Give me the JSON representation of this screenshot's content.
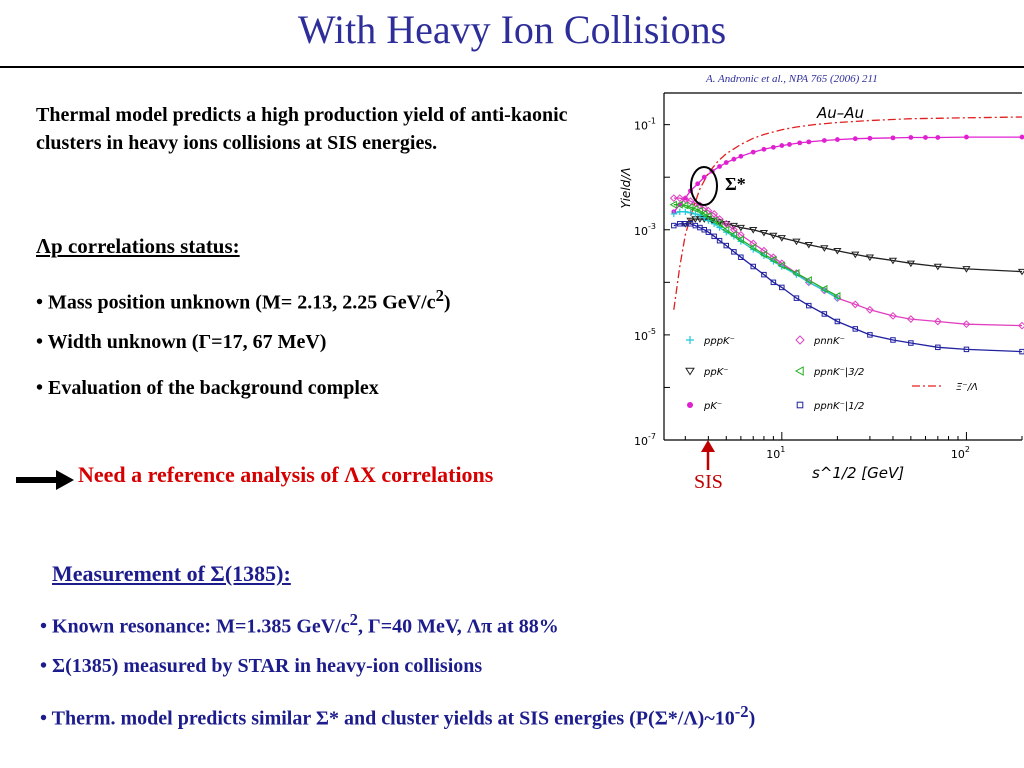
{
  "title": "With Heavy Ion Collisions",
  "citation": "A. Andronic et al., NPA 765 (2006) 211",
  "intro": "Thermal model predicts a high production yield of anti-kaonic clusters in heavy ions collisions at SIS energies.",
  "lp_heading": "Λp correlations status:",
  "lp_bullets": [
    {
      "a": "• Mass position unknown (M= 2.13, 2.25 GeV/c",
      "sup": "2",
      "b": ")"
    },
    {
      "a": "• Width unknown (Γ=17, 67 MeV)",
      "sup": "",
      "b": ""
    },
    {
      "a": "• Evaluation of the background complex",
      "sup": "",
      "b": ""
    }
  ],
  "need_text": "Need a reference analysis of ΛX correlations",
  "sis_label": "SIS",
  "sigma_star_label": "Σ*",
  "measurement_heading": "Measurement of Σ(1385):",
  "measurement_bullets": [
    {
      "a": "• Known resonance: M=1.385 GeV/c",
      "sup": "2",
      "b": ", Γ=40 MeV,  Λπ at 88%"
    },
    {
      "a": "• Σ(1385) measured by STAR in heavy-ion collisions",
      "sup": "",
      "b": ""
    },
    {
      "a": "• Therm. model predicts similar Σ* and cluster yields at SIS energies (P(Σ*/Λ)~10",
      "sup": "-2",
      "b": ")"
    }
  ],
  "chart_data": {
    "type": "line",
    "title": "Au–Au",
    "xlabel": "s^1/2 [GeV]",
    "ylabel": "Yield/Λ",
    "xscale": "log",
    "yscale": "log",
    "xlim": [
      2.3,
      200
    ],
    "ylim": [
      1e-07,
      0.4
    ],
    "xticks": [
      {
        "value": 10,
        "base": "10",
        "exp": "1"
      },
      {
        "value": 100,
        "base": "10",
        "exp": "2"
      }
    ],
    "yticks": [
      {
        "value": 0.1,
        "base": "10",
        "exp": "-1"
      },
      {
        "value": 0.001,
        "base": "10",
        "exp": "-3"
      },
      {
        "value": 1e-05,
        "base": "10",
        "exp": "-5"
      },
      {
        "value": 1e-07,
        "base": "10",
        "exp": "-7"
      }
    ],
    "legend": [
      {
        "marker": "plus",
        "color": "#20c8d8",
        "label": "pppK⁻"
      },
      {
        "marker": "diamond",
        "color": "#e040c0",
        "label": "pnnK⁻"
      },
      {
        "marker": "tri-down",
        "color": "#222222",
        "label": "ppK⁻"
      },
      {
        "marker": "tri-left",
        "color": "#20b020",
        "label": "ppnK⁻|3/2"
      },
      {
        "marker": "dashdot",
        "color": "#e02020",
        "label": "Ξ⁻/Λ"
      },
      {
        "marker": "dot",
        "color": "#e020d0",
        "label": "pK⁻"
      },
      {
        "marker": "square",
        "color": "#2020a0",
        "label": "ppnK⁻|1/2"
      }
    ],
    "series": [
      {
        "name": "pK⁻",
        "color": "#e020d0",
        "marker": "dot",
        "x": [
          2.6,
          2.8,
          3.0,
          3.2,
          3.5,
          3.8,
          4.2,
          4.6,
          5,
          5.5,
          6,
          7,
          8,
          9,
          10,
          11,
          12.5,
          14,
          17,
          20,
          25,
          30,
          40,
          50,
          60,
          70,
          100,
          200
        ],
        "y": [
          0.0022,
          0.003,
          0.004,
          0.0055,
          0.0075,
          0.01,
          0.013,
          0.016,
          0.019,
          0.022,
          0.025,
          0.03,
          0.034,
          0.037,
          0.04,
          0.042,
          0.045,
          0.047,
          0.05,
          0.052,
          0.054,
          0.055,
          0.056,
          0.057,
          0.057,
          0.057,
          0.058,
          0.058
        ]
      },
      {
        "name": "ppK⁻",
        "color": "#222222",
        "marker": "tri-down",
        "x": [
          3.0,
          3.2,
          3.4,
          3.6,
          3.8,
          4.0,
          4.2,
          4.6,
          5,
          5.5,
          6,
          7,
          8,
          9,
          10,
          12,
          14,
          17,
          20,
          25,
          30,
          40,
          50,
          70,
          100,
          200
        ],
        "y": [
          0.0013,
          0.0015,
          0.0016,
          0.0016,
          0.0016,
          0.0016,
          0.0015,
          0.0014,
          0.0013,
          0.0012,
          0.0011,
          0.001,
          0.00088,
          0.00078,
          0.0007,
          0.0006,
          0.00052,
          0.00045,
          0.0004,
          0.00034,
          0.0003,
          0.00026,
          0.00023,
          0.0002,
          0.00018,
          0.00016
        ]
      },
      {
        "name": "pnnK⁻",
        "color": "#e040c0",
        "marker": "diamond",
        "x": [
          2.6,
          2.8,
          3.0,
          3.2,
          3.4,
          3.6,
          3.8,
          4.0,
          4.3,
          4.6,
          5,
          5.5,
          6,
          7,
          8,
          9,
          10,
          12,
          14,
          17,
          20,
          25,
          30,
          40,
          50,
          70,
          100,
          200
        ],
        "y": [
          0.004,
          0.004,
          0.0038,
          0.0035,
          0.0032,
          0.0029,
          0.0026,
          0.0023,
          0.002,
          0.0016,
          0.0013,
          0.001,
          0.0008,
          0.00055,
          0.0004,
          0.0003,
          0.00023,
          0.00015,
          0.0001,
          7e-05,
          5e-05,
          3.8e-05,
          3e-05,
          2.3e-05,
          2e-05,
          1.8e-05,
          1.6e-05,
          1.5e-05
        ]
      },
      {
        "name": "pppK⁻",
        "color": "#20c8d8",
        "marker": "plus",
        "x": [
          2.6,
          2.8,
          3.0,
          3.2,
          3.4,
          3.6,
          3.8,
          4.0,
          4.3,
          4.6,
          5,
          5.5,
          6,
          7,
          8,
          9,
          10,
          12,
          14,
          17,
          20
        ],
        "y": [
          0.002,
          0.0022,
          0.0022,
          0.0021,
          0.002,
          0.0019,
          0.0017,
          0.0015,
          0.0013,
          0.0011,
          0.0009,
          0.00075,
          0.0006,
          0.00042,
          0.00032,
          0.00025,
          0.0002,
          0.00014,
          0.0001,
          7e-05,
          5e-05
        ]
      },
      {
        "name": "ppnK⁻|3/2",
        "color": "#20b020",
        "marker": "tri-left",
        "x": [
          2.6,
          2.8,
          3.0,
          3.2,
          3.4,
          3.6,
          3.8,
          4.0,
          4.3,
          4.6,
          5,
          5.5,
          6,
          7,
          8,
          9,
          10,
          12,
          14,
          17,
          20
        ],
        "y": [
          0.003,
          0.003,
          0.0029,
          0.0027,
          0.0025,
          0.0023,
          0.002,
          0.0018,
          0.0015,
          0.0013,
          0.001,
          0.0008,
          0.00065,
          0.00046,
          0.00034,
          0.00027,
          0.00021,
          0.00015,
          0.00011,
          7.5e-05,
          5.5e-05
        ]
      },
      {
        "name": "ppnK⁻|1/2",
        "color": "#2020a0",
        "marker": "square",
        "x": [
          2.6,
          2.8,
          3.0,
          3.2,
          3.4,
          3.6,
          3.8,
          4.0,
          4.3,
          4.6,
          5,
          5.5,
          6,
          7,
          8,
          9,
          10,
          12,
          14,
          17,
          20,
          25,
          30,
          40,
          50,
          70,
          100,
          200
        ],
        "y": [
          0.0012,
          0.0013,
          0.0013,
          0.0013,
          0.0012,
          0.0011,
          0.001,
          0.0009,
          0.00075,
          0.00062,
          0.0005,
          0.00038,
          0.0003,
          0.0002,
          0.00014,
          0.0001,
          8e-05,
          5e-05,
          3.6e-05,
          2.5e-05,
          1.8e-05,
          1.3e-05,
          1e-05,
          8e-06,
          7e-06,
          5.8e-06,
          5.3e-06,
          4.8e-06
        ]
      },
      {
        "name": "Ξ⁻/Λ",
        "color": "#e02020",
        "marker": "dashdot",
        "x": [
          2.6,
          2.8,
          3.0,
          3.3,
          3.6,
          4,
          4.5,
          5,
          6,
          7,
          8,
          10,
          12,
          15,
          20,
          30,
          50,
          100,
          200
        ],
        "y": [
          3e-05,
          0.0002,
          0.0008,
          0.0025,
          0.006,
          0.012,
          0.02,
          0.028,
          0.042,
          0.055,
          0.065,
          0.08,
          0.09,
          0.1,
          0.11,
          0.12,
          0.13,
          0.135,
          0.14
        ]
      }
    ]
  }
}
